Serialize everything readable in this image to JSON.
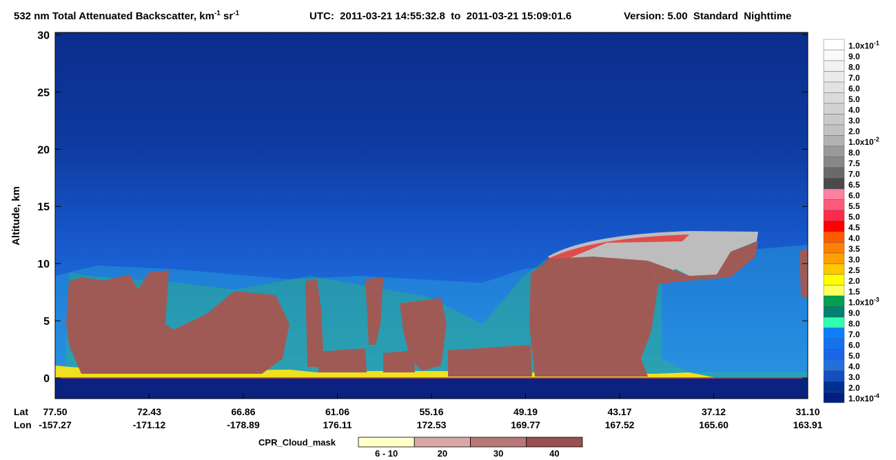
{
  "chart_data": {
    "type": "curtain",
    "title": [
      "532 nm Total Attenuated Backscatter, km",
      "-1",
      " sr",
      "-1"
    ],
    "utc": "UTC:  2011-03-21 14:55:32.8  to  2011-03-21 15:09:01.6",
    "version": "Version: 5.00  Standard  Nighttime",
    "ylabel": "Altitude, km",
    "ylim": [
      -1.8,
      30.2
    ],
    "yticks": [
      0,
      5,
      10,
      15,
      20,
      25,
      30
    ],
    "lat_label": "Lat",
    "lon_label": "Lon",
    "xticks": [
      {
        "lat": "77.50",
        "lon": "-157.27"
      },
      {
        "lat": "72.43",
        "lon": "-171.12"
      },
      {
        "lat": "66.86",
        "lon": "-178.89"
      },
      {
        "lat": "61.06",
        "lon": "176.11"
      },
      {
        "lat": "55.16",
        "lon": "172.53"
      },
      {
        "lat": "49.19",
        "lon": "169.77"
      },
      {
        "lat": "43.17",
        "lon": "167.52"
      },
      {
        "lat": "37.12",
        "lon": "165.60"
      },
      {
        "lat": "31.10",
        "lon": "163.91"
      }
    ],
    "colorbar": {
      "labels": [
        {
          "text": "1.0x10",
          "sup": "-1"
        },
        "9.0",
        "8.0",
        "7.0",
        "6.0",
        "5.0",
        "4.0",
        "3.0",
        "2.0",
        {
          "text": "1.0x10",
          "sup": "-2"
        },
        "8.0",
        "7.5",
        "7.0",
        "6.5",
        "6.0",
        "5.5",
        "5.0",
        "4.5",
        "4.0",
        "3.5",
        "3.0",
        "2.5",
        "2.0",
        "1.5",
        {
          "text": "1.0x10",
          "sup": "-3"
        },
        "9.0",
        "8.0",
        "7.0",
        "6.0",
        "5.0",
        "4.0",
        "3.0",
        "2.0",
        {
          "text": "1.0x10",
          "sup": "-4"
        }
      ],
      "colors": [
        "#ffffff",
        "#fafafa",
        "#f2f2f2",
        "#eaeaea",
        "#e2e2e2",
        "#dadada",
        "#d2d2d2",
        "#cacaca",
        "#c2c2c2",
        "#b2b2b2",
        "#9a9a9a",
        "#888888",
        "#6a6a6a",
        "#4a4a4a",
        "#ff7fa0",
        "#ff5a7a",
        "#ff2a4a",
        "#ff0000",
        "#ff5a00",
        "#ff8000",
        "#ffa000",
        "#ffc800",
        "#ffff00",
        "#ffff60",
        "#00a050",
        "#00806e",
        "#30ffb0",
        "#0a80ff",
        "#1272f0",
        "#1a66e6",
        "#2070e0",
        "#1050c0",
        "#003090",
        "#002080"
      ]
    },
    "cloud_mask": {
      "label": "CPR_Cloud_mask",
      "categories": [
        "6 - 10",
        "20",
        "30",
        "40"
      ],
      "colors": [
        "#ffffc8",
        "#d8a8a8",
        "#b87878",
        "#985050"
      ]
    }
  }
}
